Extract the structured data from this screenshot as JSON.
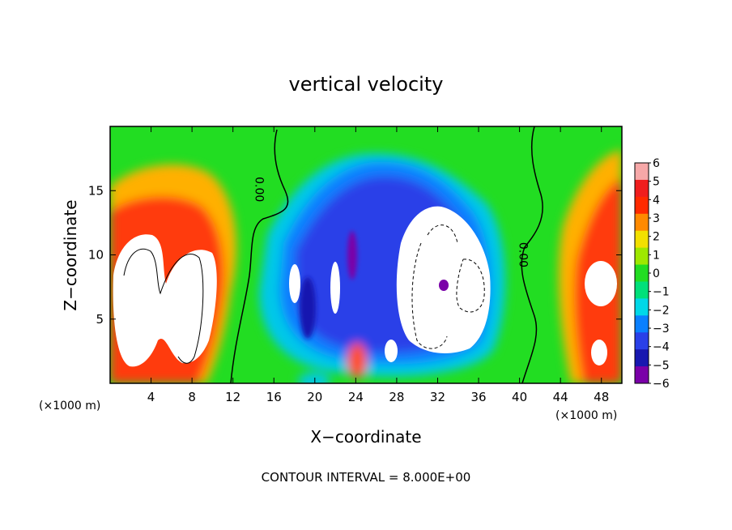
{
  "chart_data": {
    "type": "heatmap",
    "title": "vertical velocity",
    "xlabel": "X−coordinate",
    "ylabel": "Z−coordinate",
    "x_unit_left": "(×1000 m)",
    "x_unit_right": "(×1000 m)",
    "xlim": [
      0,
      50
    ],
    "ylim": [
      0,
      20
    ],
    "x_ticks": [
      "4",
      "8",
      "12",
      "16",
      "20",
      "24",
      "28",
      "32",
      "36",
      "40",
      "44",
      "48"
    ],
    "x_tick_values": [
      4,
      8,
      12,
      16,
      20,
      24,
      28,
      32,
      36,
      40,
      44,
      48
    ],
    "y_ticks": [
      "5",
      "10",
      "15"
    ],
    "y_tick_values": [
      5,
      10,
      15
    ],
    "colorbar": {
      "labels": [
        "6",
        "5",
        "4",
        "3",
        "2",
        "1",
        "0",
        "−1",
        "−2",
        "−3",
        "−4",
        "−5",
        "−6"
      ],
      "values": [
        6,
        5,
        4,
        3,
        2,
        1,
        0,
        -1,
        -2,
        -3,
        -4,
        -5,
        -6
      ],
      "colors": [
        "#f6a8a8",
        "#f01e1e",
        "#ff2a00",
        "#ff8a00",
        "#f2e000",
        "#9ee800",
        "#22dd22",
        "#00e07a",
        "#00d8e8",
        "#0a80ff",
        "#2a40e8",
        "#1818b0",
        "#7a00a8"
      ]
    },
    "contour_labels": [
      {
        "text": "0.00",
        "x": 14.2,
        "z": 15.1
      },
      {
        "text": "0.00",
        "x": 40.0,
        "z": 10.0
      }
    ],
    "footer": "CONTOUR INTERVAL = 8.000E+00"
  }
}
